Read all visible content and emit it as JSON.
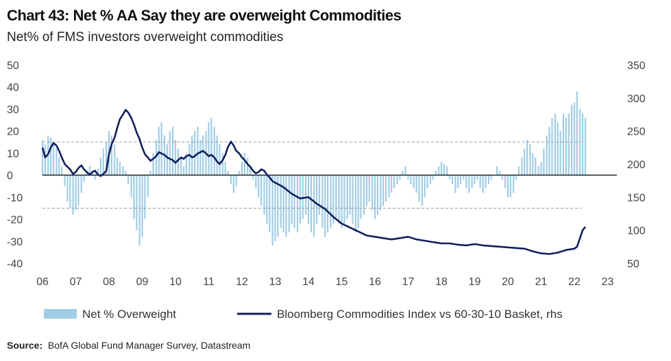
{
  "header": {
    "title": "Chart 43: Net % AA Say they are overweight Commodities",
    "subtitle": "Net% of FMS investors overweight commodities"
  },
  "footer": {
    "source_label": "Source:",
    "source_text": "BofA Global Fund Manager Survey, Datastream"
  },
  "colors": {
    "bar": "#9fcde6",
    "line": "#0f1f5c",
    "dashed": "#999999",
    "zero": "#000000"
  },
  "chart_data": {
    "type": "bar",
    "xlim": [
      2006,
      2023.5
    ],
    "x_ticks": [
      "06",
      "07",
      "08",
      "09",
      "10",
      "11",
      "12",
      "13",
      "14",
      "15",
      "16",
      "17",
      "18",
      "19",
      "20",
      "21",
      "22",
      "23"
    ],
    "ylim_left": [
      -40,
      50
    ],
    "y_ticks_left": [
      "50",
      "40",
      "30",
      "20",
      "10",
      "0",
      "-10",
      "-20",
      "-30",
      "-40"
    ],
    "ylim_right": [
      50,
      350
    ],
    "y_ticks_right": [
      "350",
      "300",
      "250",
      "200",
      "150",
      "100",
      "50"
    ],
    "reference_lines": [
      15,
      -15
    ],
    "series": [
      {
        "name": "Net % Overweight",
        "type": "bar",
        "axis": "left",
        "x": [
          2006.0,
          2006.08,
          2006.17,
          2006.25,
          2006.33,
          2006.42,
          2006.5,
          2006.58,
          2006.67,
          2006.75,
          2006.83,
          2006.92,
          2007.0,
          2007.08,
          2007.17,
          2007.25,
          2007.33,
          2007.42,
          2007.5,
          2007.58,
          2007.67,
          2007.75,
          2007.83,
          2007.92,
          2008.0,
          2008.08,
          2008.17,
          2008.25,
          2008.33,
          2008.42,
          2008.5,
          2008.58,
          2008.67,
          2008.75,
          2008.83,
          2008.92,
          2009.0,
          2009.08,
          2009.17,
          2009.25,
          2009.33,
          2009.42,
          2009.5,
          2009.58,
          2009.67,
          2009.75,
          2009.83,
          2009.92,
          2010.0,
          2010.08,
          2010.17,
          2010.25,
          2010.33,
          2010.42,
          2010.5,
          2010.58,
          2010.67,
          2010.75,
          2010.83,
          2010.92,
          2011.0,
          2011.08,
          2011.17,
          2011.25,
          2011.33,
          2011.42,
          2011.5,
          2011.58,
          2011.67,
          2011.75,
          2011.83,
          2011.92,
          2012.0,
          2012.08,
          2012.17,
          2012.25,
          2012.33,
          2012.42,
          2012.5,
          2012.58,
          2012.67,
          2012.75,
          2012.83,
          2012.92,
          2013.0,
          2013.08,
          2013.17,
          2013.25,
          2013.33,
          2013.42,
          2013.5,
          2013.58,
          2013.67,
          2013.75,
          2013.83,
          2013.92,
          2014.0,
          2014.08,
          2014.17,
          2014.25,
          2014.33,
          2014.42,
          2014.5,
          2014.58,
          2014.67,
          2014.75,
          2014.83,
          2014.92,
          2015.0,
          2015.08,
          2015.17,
          2015.25,
          2015.33,
          2015.42,
          2015.5,
          2015.58,
          2015.67,
          2015.75,
          2015.83,
          2015.92,
          2016.0,
          2016.08,
          2016.17,
          2016.25,
          2016.33,
          2016.42,
          2016.5,
          2016.58,
          2016.67,
          2016.75,
          2016.83,
          2016.92,
          2017.0,
          2017.08,
          2017.17,
          2017.25,
          2017.33,
          2017.42,
          2017.5,
          2017.58,
          2017.67,
          2017.75,
          2017.83,
          2017.92,
          2018.0,
          2018.08,
          2018.17,
          2018.25,
          2018.33,
          2018.42,
          2018.5,
          2018.58,
          2018.67,
          2018.75,
          2018.83,
          2018.92,
          2019.0,
          2019.08,
          2019.17,
          2019.25,
          2019.33,
          2019.42,
          2019.5,
          2019.58,
          2019.67,
          2019.75,
          2019.83,
          2019.92,
          2020.0,
          2020.08,
          2020.17,
          2020.25,
          2020.33,
          2020.42,
          2020.5,
          2020.58,
          2020.67,
          2020.75,
          2020.83,
          2020.92,
          2021.0,
          2021.08,
          2021.17,
          2021.25,
          2021.33,
          2021.42,
          2021.5,
          2021.58,
          2021.67,
          2021.75,
          2021.83,
          2021.92,
          2022.0,
          2022.08,
          2022.17,
          2022.25,
          2022.33
        ],
        "values": [
          16,
          14,
          18,
          17,
          15,
          12,
          8,
          4,
          -5,
          -12,
          -15,
          -18,
          -16,
          -14,
          -8,
          -3,
          2,
          4,
          1,
          -2,
          3,
          8,
          12,
          15,
          20,
          18,
          14,
          8,
          6,
          4,
          2,
          -4,
          -10,
          -20,
          -25,
          -32,
          -28,
          -20,
          -10,
          2,
          10,
          16,
          22,
          24,
          18,
          14,
          20,
          22,
          16,
          12,
          8,
          4,
          10,
          14,
          18,
          20,
          22,
          16,
          18,
          20,
          24,
          26,
          22,
          18,
          14,
          10,
          6,
          2,
          -4,
          -8,
          -5,
          2,
          6,
          10,
          8,
          4,
          -2,
          -6,
          -10,
          -14,
          -18,
          -22,
          -26,
          -32,
          -30,
          -28,
          -24,
          -26,
          -28,
          -26,
          -22,
          -24,
          -26,
          -22,
          -20,
          -18,
          -22,
          -26,
          -28,
          -22,
          -18,
          -24,
          -28,
          -26,
          -24,
          -22,
          -20,
          -22,
          -24,
          -22,
          -20,
          -18,
          -22,
          -26,
          -24,
          -20,
          -18,
          -14,
          -12,
          -16,
          -20,
          -18,
          -16,
          -14,
          -12,
          -10,
          -8,
          -6,
          -4,
          -2,
          2,
          4,
          -2,
          -4,
          -6,
          -8,
          -12,
          -14,
          -10,
          -6,
          -4,
          -2,
          2,
          4,
          6,
          5,
          4,
          -2,
          -4,
          -8,
          -6,
          -4,
          -2,
          -6,
          -8,
          -6,
          -4,
          -2,
          -6,
          -8,
          -6,
          -4,
          -2,
          0,
          4,
          2,
          -2,
          -6,
          -10,
          -10,
          -8,
          -2,
          4,
          8,
          12,
          16,
          14,
          10,
          8,
          4,
          6,
          12,
          18,
          22,
          26,
          28,
          24,
          20,
          28,
          26,
          28,
          32,
          33,
          38,
          30,
          28,
          26
        ]
      },
      {
        "name": "Bloomberg Commodities Index vs 60-30-10 Basket, rhs",
        "type": "line",
        "axis": "right",
        "x": [
          2006.0,
          2006.08,
          2006.17,
          2006.25,
          2006.33,
          2006.42,
          2006.5,
          2006.58,
          2006.67,
          2006.75,
          2006.83,
          2006.92,
          2007.0,
          2007.08,
          2007.17,
          2007.25,
          2007.33,
          2007.42,
          2007.5,
          2007.58,
          2007.67,
          2007.75,
          2007.83,
          2007.92,
          2008.0,
          2008.08,
          2008.17,
          2008.25,
          2008.33,
          2008.42,
          2008.5,
          2008.58,
          2008.67,
          2008.75,
          2008.83,
          2008.92,
          2009.0,
          2009.08,
          2009.17,
          2009.25,
          2009.33,
          2009.42,
          2009.5,
          2009.58,
          2009.67,
          2009.75,
          2009.83,
          2009.92,
          2010.0,
          2010.08,
          2010.17,
          2010.25,
          2010.33,
          2010.42,
          2010.5,
          2010.58,
          2010.67,
          2010.75,
          2010.83,
          2010.92,
          2011.0,
          2011.08,
          2011.17,
          2011.25,
          2011.33,
          2011.42,
          2011.5,
          2011.58,
          2011.67,
          2011.75,
          2011.83,
          2011.92,
          2012.0,
          2012.08,
          2012.17,
          2012.25,
          2012.33,
          2012.42,
          2012.5,
          2012.58,
          2012.67,
          2012.75,
          2012.83,
          2012.92,
          2013.0,
          2013.25,
          2013.5,
          2013.75,
          2014.0,
          2014.25,
          2014.5,
          2014.75,
          2015.0,
          2015.25,
          2015.5,
          2015.75,
          2016.0,
          2016.25,
          2016.5,
          2016.75,
          2017.0,
          2017.25,
          2017.5,
          2017.75,
          2018.0,
          2018.25,
          2018.5,
          2018.75,
          2019.0,
          2019.25,
          2019.5,
          2019.75,
          2020.0,
          2020.25,
          2020.5,
          2020.75,
          2021.0,
          2021.25,
          2021.5,
          2021.75,
          2022.0,
          2022.08,
          2022.17,
          2022.25,
          2022.33
        ],
        "values": [
          225,
          210,
          215,
          225,
          232,
          228,
          220,
          210,
          200,
          196,
          192,
          185,
          188,
          194,
          198,
          192,
          188,
          184,
          188,
          190,
          184,
          182,
          185,
          190,
          215,
          230,
          240,
          255,
          268,
          275,
          282,
          278,
          270,
          260,
          248,
          238,
          225,
          215,
          210,
          205,
          208,
          212,
          218,
          216,
          214,
          210,
          208,
          206,
          202,
          206,
          210,
          208,
          212,
          214,
          210,
          212,
          216,
          218,
          220,
          216,
          212,
          214,
          210,
          204,
          200,
          206,
          214,
          226,
          234,
          228,
          220,
          216,
          210,
          206,
          200,
          196,
          190,
          186,
          188,
          192,
          190,
          184,
          180,
          174,
          172,
          165,
          155,
          148,
          150,
          140,
          132,
          120,
          110,
          104,
          98,
          92,
          90,
          88,
          86,
          88,
          90,
          86,
          84,
          82,
          80,
          80,
          78,
          77,
          79,
          77,
          76,
          75,
          74,
          73,
          72,
          68,
          65,
          64,
          66,
          70,
          72,
          75,
          88,
          100,
          105
        ]
      }
    ],
    "legend_position": "bottom"
  }
}
